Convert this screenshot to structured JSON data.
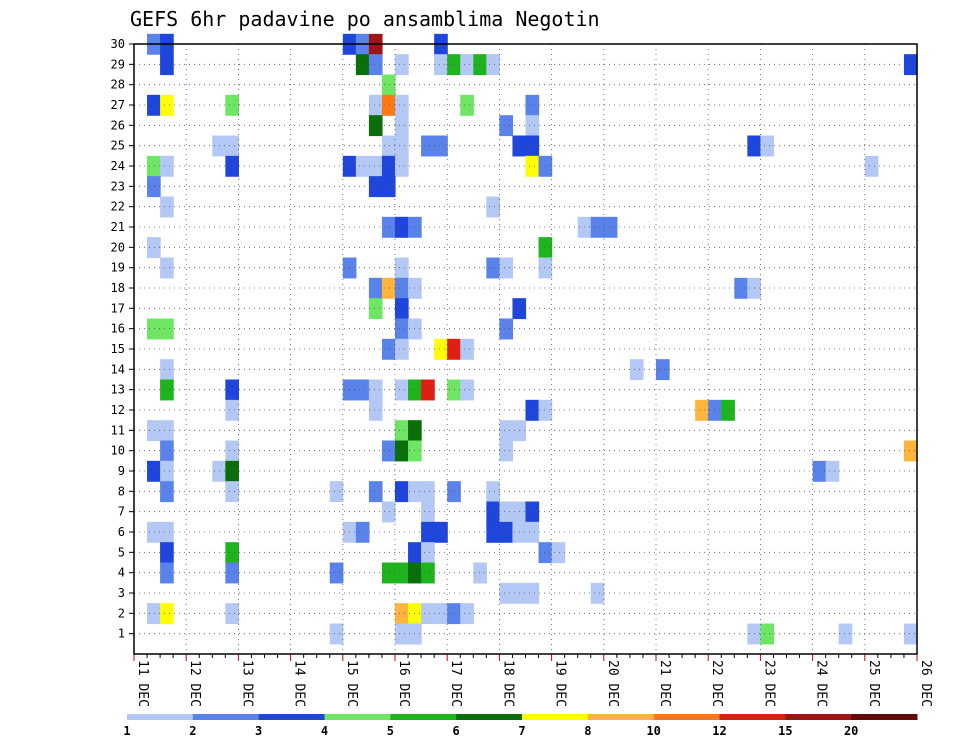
{
  "chart_data": {
    "type": "heatmap",
    "title": "GEFS 6hr padavine po ansamblima Negotin",
    "xlabel": "",
    "ylabel": "",
    "x_ticks": [
      "11 DEC",
      "12 DEC",
      "13 DEC",
      "14 DEC",
      "15 DEC",
      "16 DEC",
      "17 DEC",
      "18 DEC",
      "19 DEC",
      "20 DEC",
      "21 DEC",
      "22 DEC",
      "23 DEC",
      "24 DEC",
      "25 DEC",
      "26 DEC"
    ],
    "y_ticks": [
      1,
      2,
      3,
      4,
      5,
      6,
      7,
      8,
      9,
      10,
      11,
      12,
      13,
      14,
      15,
      16,
      17,
      18,
      19,
      20,
      21,
      22,
      23,
      24,
      25,
      26,
      27,
      28,
      29,
      30
    ],
    "x_range": [
      "11 DEC 00Z",
      "26 DEC 00Z"
    ],
    "y_range": [
      0,
      30
    ],
    "x_step_hours": 6,
    "grid": true,
    "colorbar": {
      "levels": [
        1,
        2,
        3,
        4,
        5,
        6,
        7,
        8,
        10,
        12,
        15,
        20
      ],
      "colors": [
        "#b4c8f5",
        "#5a82eb",
        "#1e46dc",
        "#6ee664",
        "#1eb41e",
        "#0a6e0a",
        "#ffff00",
        "#ffb43c",
        "#ff7814",
        "#e11e14",
        "#a01414",
        "#640a0a"
      ]
    },
    "points": [
      {
        "x": "11 DEC 06Z",
        "y": 30,
        "c": 1
      },
      {
        "x": "11 DEC 12Z",
        "y": 30,
        "c": 2
      },
      {
        "x": "15 DEC 00Z",
        "y": 30,
        "c": 2
      },
      {
        "x": "15 DEC 06Z",
        "y": 30,
        "c": 1
      },
      {
        "x": "15 DEC 12Z",
        "y": 30,
        "c": 10
      },
      {
        "x": "16 DEC 18Z",
        "y": 30,
        "c": 2
      },
      {
        "x": "11 DEC 12Z",
        "y": 29,
        "c": 2
      },
      {
        "x": "15 DEC 06Z",
        "y": 29,
        "c": 5
      },
      {
        "x": "15 DEC 12Z",
        "y": 29,
        "c": 1
      },
      {
        "x": "16 DEC 00Z",
        "y": 29,
        "c": 0
      },
      {
        "x": "16 DEC 18Z",
        "y": 29,
        "c": 0
      },
      {
        "x": "17 DEC 00Z",
        "y": 29,
        "c": 4
      },
      {
        "x": "17 DEC 06Z",
        "y": 29,
        "c": 0
      },
      {
        "x": "17 DEC 12Z",
        "y": 29,
        "c": 4
      },
      {
        "x": "17 DEC 18Z",
        "y": 29,
        "c": 0
      },
      {
        "x": "25 DEC 18Z",
        "y": 29,
        "c": 2
      },
      {
        "x": "15 DEC 18Z",
        "y": 28,
        "c": 3
      },
      {
        "x": "11 DEC 06Z",
        "y": 27,
        "c": 2
      },
      {
        "x": "11 DEC 12Z",
        "y": 27,
        "c": 6
      },
      {
        "x": "12 DEC 18Z",
        "y": 27,
        "c": 3
      },
      {
        "x": "15 DEC 12Z",
        "y": 27,
        "c": 0
      },
      {
        "x": "15 DEC 18Z",
        "y": 27,
        "c": 8
      },
      {
        "x": "16 DEC 00Z",
        "y": 27,
        "c": 0
      },
      {
        "x": "17 DEC 06Z",
        "y": 27,
        "c": 3
      },
      {
        "x": "18 DEC 12Z",
        "y": 27,
        "c": 1
      },
      {
        "x": "15 DEC 12Z",
        "y": 26,
        "c": 5
      },
      {
        "x": "16 DEC 00Z",
        "y": 26,
        "c": 0
      },
      {
        "x": "18 DEC 00Z",
        "y": 26,
        "c": 1
      },
      {
        "x": "18 DEC 12Z",
        "y": 26,
        "c": 0
      },
      {
        "x": "12 DEC 12Z",
        "y": 25,
        "c": 0
      },
      {
        "x": "12 DEC 18Z",
        "y": 25,
        "c": 0
      },
      {
        "x": "15 DEC 18Z",
        "y": 25,
        "c": 0
      },
      {
        "x": "16 DEC 00Z",
        "y": 25,
        "c": 0
      },
      {
        "x": "16 DEC 12Z",
        "y": 25,
        "c": 1
      },
      {
        "x": "16 DEC 18Z",
        "y": 25,
        "c": 1
      },
      {
        "x": "18 DEC 06Z",
        "y": 25,
        "c": 2
      },
      {
        "x": "18 DEC 12Z",
        "y": 25,
        "c": 2
      },
      {
        "x": "22 DEC 18Z",
        "y": 25,
        "c": 2
      },
      {
        "x": "23 DEC 00Z",
        "y": 25,
        "c": 0
      },
      {
        "x": "11 DEC 06Z",
        "y": 24,
        "c": 3
      },
      {
        "x": "11 DEC 12Z",
        "y": 24,
        "c": 0
      },
      {
        "x": "12 DEC 18Z",
        "y": 24,
        "c": 2
      },
      {
        "x": "15 DEC 00Z",
        "y": 24,
        "c": 2
      },
      {
        "x": "15 DEC 06Z",
        "y": 24,
        "c": 0
      },
      {
        "x": "15 DEC 12Z",
        "y": 24,
        "c": 0
      },
      {
        "x": "15 DEC 18Z",
        "y": 24,
        "c": 2
      },
      {
        "x": "16 DEC 00Z",
        "y": 24,
        "c": 0
      },
      {
        "x": "18 DEC 12Z",
        "y": 24,
        "c": 6
      },
      {
        "x": "18 DEC 18Z",
        "y": 24,
        "c": 1
      },
      {
        "x": "25 DEC 00Z",
        "y": 24,
        "c": 0
      },
      {
        "x": "11 DEC 06Z",
        "y": 23,
        "c": 1
      },
      {
        "x": "15 DEC 12Z",
        "y": 23,
        "c": 2
      },
      {
        "x": "15 DEC 18Z",
        "y": 23,
        "c": 2
      },
      {
        "x": "11 DEC 12Z",
        "y": 22,
        "c": 0
      },
      {
        "x": "17 DEC 18Z",
        "y": 22,
        "c": 0
      },
      {
        "x": "15 DEC 18Z",
        "y": 21,
        "c": 1
      },
      {
        "x": "16 DEC 00Z",
        "y": 21,
        "c": 2
      },
      {
        "x": "16 DEC 06Z",
        "y": 21,
        "c": 1
      },
      {
        "x": "19 DEC 12Z",
        "y": 21,
        "c": 0
      },
      {
        "x": "19 DEC 18Z",
        "y": 21,
        "c": 1
      },
      {
        "x": "20 DEC 00Z",
        "y": 21,
        "c": 1
      },
      {
        "x": "11 DEC 06Z",
        "y": 20,
        "c": 0
      },
      {
        "x": "18 DEC 18Z",
        "y": 20,
        "c": 4
      },
      {
        "x": "11 DEC 12Z",
        "y": 19,
        "c": 0
      },
      {
        "x": "15 DEC 00Z",
        "y": 19,
        "c": 1
      },
      {
        "x": "16 DEC 00Z",
        "y": 19,
        "c": 0
      },
      {
        "x": "17 DEC 18Z",
        "y": 19,
        "c": 1
      },
      {
        "x": "18 DEC 00Z",
        "y": 19,
        "c": 0
      },
      {
        "x": "18 DEC 18Z",
        "y": 19,
        "c": 0
      },
      {
        "x": "15 DEC 12Z",
        "y": 18,
        "c": 1
      },
      {
        "x": "15 DEC 18Z",
        "y": 18,
        "c": 7
      },
      {
        "x": "16 DEC 00Z",
        "y": 18,
        "c": 1
      },
      {
        "x": "16 DEC 06Z",
        "y": 18,
        "c": 0
      },
      {
        "x": "22 DEC 12Z",
        "y": 18,
        "c": 1
      },
      {
        "x": "22 DEC 18Z",
        "y": 18,
        "c": 0
      },
      {
        "x": "15 DEC 12Z",
        "y": 17,
        "c": 3
      },
      {
        "x": "16 DEC 00Z",
        "y": 17,
        "c": 2
      },
      {
        "x": "18 DEC 06Z",
        "y": 17,
        "c": 2
      },
      {
        "x": "11 DEC 06Z",
        "y": 16,
        "c": 3
      },
      {
        "x": "11 DEC 12Z",
        "y": 16,
        "c": 3
      },
      {
        "x": "16 DEC 00Z",
        "y": 16,
        "c": 1
      },
      {
        "x": "16 DEC 06Z",
        "y": 16,
        "c": 0
      },
      {
        "x": "18 DEC 00Z",
        "y": 16,
        "c": 1
      },
      {
        "x": "15 DEC 18Z",
        "y": 15,
        "c": 1
      },
      {
        "x": "16 DEC 00Z",
        "y": 15,
        "c": 0
      },
      {
        "x": "16 DEC 18Z",
        "y": 15,
        "c": 6
      },
      {
        "x": "17 DEC 00Z",
        "y": 15,
        "c": 9
      },
      {
        "x": "17 DEC 06Z",
        "y": 15,
        "c": 0
      },
      {
        "x": "11 DEC 12Z",
        "y": 14,
        "c": 0
      },
      {
        "x": "20 DEC 12Z",
        "y": 14,
        "c": 0
      },
      {
        "x": "21 DEC 00Z",
        "y": 14,
        "c": 1
      },
      {
        "x": "11 DEC 12Z",
        "y": 13,
        "c": 4
      },
      {
        "x": "12 DEC 18Z",
        "y": 13,
        "c": 2
      },
      {
        "x": "15 DEC 00Z",
        "y": 13,
        "c": 1
      },
      {
        "x": "15 DEC 06Z",
        "y": 13,
        "c": 1
      },
      {
        "x": "15 DEC 12Z",
        "y": 13,
        "c": 0
      },
      {
        "x": "16 DEC 00Z",
        "y": 13,
        "c": 0
      },
      {
        "x": "16 DEC 06Z",
        "y": 13,
        "c": 4
      },
      {
        "x": "16 DEC 12Z",
        "y": 13,
        "c": 9
      },
      {
        "x": "17 DEC 00Z",
        "y": 13,
        "c": 3
      },
      {
        "x": "17 DEC 06Z",
        "y": 13,
        "c": 0
      },
      {
        "x": "12 DEC 18Z",
        "y": 12,
        "c": 0
      },
      {
        "x": "15 DEC 12Z",
        "y": 12,
        "c": 0
      },
      {
        "x": "18 DEC 12Z",
        "y": 12,
        "c": 2
      },
      {
        "x": "18 DEC 18Z",
        "y": 12,
        "c": 0
      },
      {
        "x": "21 DEC 18Z",
        "y": 12,
        "c": 7
      },
      {
        "x": "22 DEC 00Z",
        "y": 12,
        "c": 1
      },
      {
        "x": "22 DEC 06Z",
        "y": 12,
        "c": 4
      },
      {
        "x": "11 DEC 06Z",
        "y": 11,
        "c": 0
      },
      {
        "x": "11 DEC 12Z",
        "y": 11,
        "c": 0
      },
      {
        "x": "16 DEC 00Z",
        "y": 11,
        "c": 3
      },
      {
        "x": "16 DEC 06Z",
        "y": 11,
        "c": 5
      },
      {
        "x": "18 DEC 00Z",
        "y": 11,
        "c": 0
      },
      {
        "x": "18 DEC 06Z",
        "y": 11,
        "c": 0
      },
      {
        "x": "11 DEC 12Z",
        "y": 10,
        "c": 1
      },
      {
        "x": "12 DEC 18Z",
        "y": 10,
        "c": 0
      },
      {
        "x": "15 DEC 18Z",
        "y": 10,
        "c": 1
      },
      {
        "x": "16 DEC 00Z",
        "y": 10,
        "c": 5
      },
      {
        "x": "16 DEC 06Z",
        "y": 10,
        "c": 3
      },
      {
        "x": "18 DEC 00Z",
        "y": 10,
        "c": 0
      },
      {
        "x": "25 DEC 18Z",
        "y": 10,
        "c": 7
      },
      {
        "x": "11 DEC 06Z",
        "y": 9,
        "c": 2
      },
      {
        "x": "11 DEC 12Z",
        "y": 9,
        "c": 0
      },
      {
        "x": "12 DEC 12Z",
        "y": 9,
        "c": 0
      },
      {
        "x": "12 DEC 18Z",
        "y": 9,
        "c": 5
      },
      {
        "x": "24 DEC 00Z",
        "y": 9,
        "c": 1
      },
      {
        "x": "24 DEC 06Z",
        "y": 9,
        "c": 0
      },
      {
        "x": "11 DEC 12Z",
        "y": 8,
        "c": 1
      },
      {
        "x": "12 DEC 18Z",
        "y": 8,
        "c": 0
      },
      {
        "x": "14 DEC 18Z",
        "y": 8,
        "c": 0
      },
      {
        "x": "15 DEC 12Z",
        "y": 8,
        "c": 1
      },
      {
        "x": "16 DEC 00Z",
        "y": 8,
        "c": 2
      },
      {
        "x": "16 DEC 06Z",
        "y": 8,
        "c": 0
      },
      {
        "x": "16 DEC 12Z",
        "y": 8,
        "c": 0
      },
      {
        "x": "17 DEC 00Z",
        "y": 8,
        "c": 1
      },
      {
        "x": "17 DEC 18Z",
        "y": 8,
        "c": 0
      },
      {
        "x": "15 DEC 18Z",
        "y": 7,
        "c": 0
      },
      {
        "x": "16 DEC 12Z",
        "y": 7,
        "c": 0
      },
      {
        "x": "17 DEC 18Z",
        "y": 7,
        "c": 2
      },
      {
        "x": "18 DEC 00Z",
        "y": 7,
        "c": 0
      },
      {
        "x": "18 DEC 06Z",
        "y": 7,
        "c": 0
      },
      {
        "x": "18 DEC 12Z",
        "y": 7,
        "c": 2
      },
      {
        "x": "11 DEC 06Z",
        "y": 6,
        "c": 0
      },
      {
        "x": "11 DEC 12Z",
        "y": 6,
        "c": 0
      },
      {
        "x": "15 DEC 00Z",
        "y": 6,
        "c": 0
      },
      {
        "x": "15 DEC 06Z",
        "y": 6,
        "c": 1
      },
      {
        "x": "16 DEC 12Z",
        "y": 6,
        "c": 2
      },
      {
        "x": "16 DEC 18Z",
        "y": 6,
        "c": 2
      },
      {
        "x": "17 DEC 18Z",
        "y": 6,
        "c": 2
      },
      {
        "x": "18 DEC 00Z",
        "y": 6,
        "c": 2
      },
      {
        "x": "18 DEC 06Z",
        "y": 6,
        "c": 0
      },
      {
        "x": "18 DEC 12Z",
        "y": 6,
        "c": 0
      },
      {
        "x": "11 DEC 12Z",
        "y": 5,
        "c": 2
      },
      {
        "x": "12 DEC 18Z",
        "y": 5,
        "c": 4
      },
      {
        "x": "16 DEC 06Z",
        "y": 5,
        "c": 2
      },
      {
        "x": "16 DEC 12Z",
        "y": 5,
        "c": 0
      },
      {
        "x": "18 DEC 18Z",
        "y": 5,
        "c": 1
      },
      {
        "x": "19 DEC 00Z",
        "y": 5,
        "c": 0
      },
      {
        "x": "11 DEC 12Z",
        "y": 4,
        "c": 1
      },
      {
        "x": "12 DEC 18Z",
        "y": 4,
        "c": 1
      },
      {
        "x": "14 DEC 18Z",
        "y": 4,
        "c": 1
      },
      {
        "x": "15 DEC 18Z",
        "y": 4,
        "c": 4
      },
      {
        "x": "16 DEC 00Z",
        "y": 4,
        "c": 4
      },
      {
        "x": "16 DEC 06Z",
        "y": 4,
        "c": 5
      },
      {
        "x": "16 DEC 12Z",
        "y": 4,
        "c": 4
      },
      {
        "x": "17 DEC 12Z",
        "y": 4,
        "c": 0
      },
      {
        "x": "18 DEC 00Z",
        "y": 3,
        "c": 0
      },
      {
        "x": "18 DEC 06Z",
        "y": 3,
        "c": 0
      },
      {
        "x": "18 DEC 12Z",
        "y": 3,
        "c": 0
      },
      {
        "x": "19 DEC 18Z",
        "y": 3,
        "c": 0
      },
      {
        "x": "11 DEC 06Z",
        "y": 2,
        "c": 0
      },
      {
        "x": "11 DEC 12Z",
        "y": 2,
        "c": 6
      },
      {
        "x": "12 DEC 18Z",
        "y": 2,
        "c": 0
      },
      {
        "x": "16 DEC 00Z",
        "y": 2,
        "c": 7
      },
      {
        "x": "16 DEC 06Z",
        "y": 2,
        "c": 6
      },
      {
        "x": "16 DEC 12Z",
        "y": 2,
        "c": 0
      },
      {
        "x": "16 DEC 18Z",
        "y": 2,
        "c": 0
      },
      {
        "x": "17 DEC 00Z",
        "y": 2,
        "c": 1
      },
      {
        "x": "17 DEC 06Z",
        "y": 2,
        "c": 0
      },
      {
        "x": "14 DEC 18Z",
        "y": 1,
        "c": 0
      },
      {
        "x": "16 DEC 00Z",
        "y": 1,
        "c": 0
      },
      {
        "x": "16 DEC 06Z",
        "y": 1,
        "c": 0
      },
      {
        "x": "22 DEC 18Z",
        "y": 1,
        "c": 0
      },
      {
        "x": "23 DEC 00Z",
        "y": 1,
        "c": 3
      },
      {
        "x": "24 DEC 12Z",
        "y": 1,
        "c": 0
      },
      {
        "x": "25 DEC 18Z",
        "y": 1,
        "c": 0
      }
    ]
  }
}
